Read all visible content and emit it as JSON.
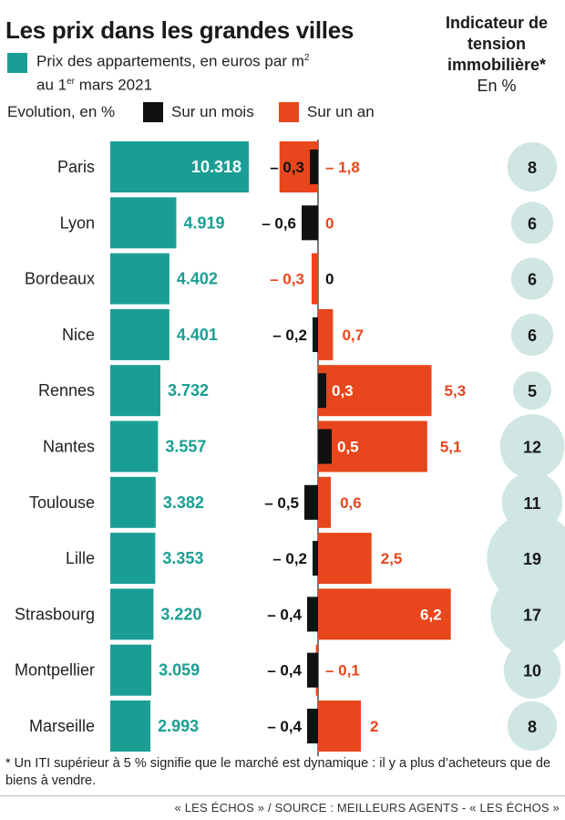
{
  "title": "Les prix dans les grandes villes",
  "legend": {
    "price_line1": "Prix des appartements, en euros par m",
    "price_sup": "2",
    "price_line2_pre": "au 1",
    "price_line2_sup": "er",
    "price_line2_post": " mars 2021",
    "evolution_label": "Evolution, en %",
    "month_label": "Sur un mois",
    "year_label": "Sur un an"
  },
  "iti_header": {
    "title": "Indicateur de tension immobilière*",
    "unit": "En %"
  },
  "colors": {
    "price": "#1a9e93",
    "month": "#111111",
    "year": "#e8461c",
    "iti": "#cfe6e3"
  },
  "chart_data": {
    "type": "bar",
    "categories": [
      "Paris",
      "Lyon",
      "Bordeaux",
      "Nice",
      "Rennes",
      "Nantes",
      "Toulouse",
      "Lille",
      "Strasbourg",
      "Montpellier",
      "Marseille"
    ],
    "series": [
      {
        "name": "Prix des appartements, en euros par m2",
        "values": [
          10318,
          4919,
          4402,
          4401,
          3732,
          3557,
          3382,
          3353,
          3220,
          3059,
          2993
        ],
        "labels": [
          "10.318",
          "4.919",
          "4.402",
          "4.401",
          "3.732",
          "3.557",
          "3.382",
          "3.353",
          "3.220",
          "3.059",
          "2.993"
        ]
      },
      {
        "name": "Sur un mois",
        "values": [
          -0.3,
          -0.6,
          0,
          -0.2,
          0.3,
          0.5,
          -0.5,
          -0.2,
          -0.4,
          -0.4,
          -0.4
        ],
        "labels": [
          "– 0,3",
          "– 0,6",
          "0",
          "– 0,2",
          "0,3",
          "0,5",
          "– 0,5",
          "– 0,2",
          "– 0,4",
          "– 0,4",
          "– 0,4"
        ]
      },
      {
        "name": "Sur un an",
        "values": [
          -1.8,
          0,
          -0.3,
          0.7,
          5.3,
          5.1,
          0.6,
          2.5,
          6.2,
          -0.1,
          2
        ],
        "labels": [
          "– 1,8",
          "0",
          "– 0,3",
          "0,7",
          "5,3",
          "5,1",
          "0,6",
          "2,5",
          "6,2",
          "– 0,1",
          "2"
        ]
      },
      {
        "name": "Indicateur de tension immobilière",
        "values": [
          8,
          6,
          6,
          6,
          5,
          12,
          11,
          19,
          17,
          10,
          8
        ],
        "labels": [
          "8",
          "6",
          "6",
          "6",
          "5",
          "12",
          "11",
          "19",
          "17",
          "10",
          "8"
        ]
      }
    ]
  },
  "footnote": "* Un ITI supérieur à 5 % signifie que le marché est dynamique : il y a plus d’acheteurs que de biens à vendre.",
  "source": "« LES ÉCHOS » / SOURCE : MEILLEURS AGENTS - « LES ÉCHOS »"
}
